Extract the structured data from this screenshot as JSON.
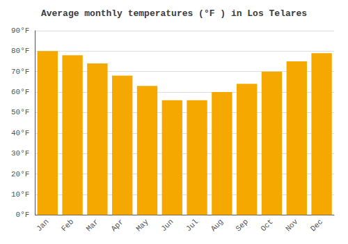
{
  "chart_data": {
    "type": "bar",
    "title": "Average monthly temperatures (°F ) in Los Telares",
    "categories": [
      "Jan",
      "Feb",
      "Mar",
      "Apr",
      "May",
      "Jun",
      "Jul",
      "Aug",
      "Sep",
      "Oct",
      "Nov",
      "Dec"
    ],
    "values": [
      80,
      78,
      74,
      68,
      63,
      56,
      56,
      60,
      64,
      70,
      75,
      79
    ],
    "color": "#F5A800",
    "ylim": [
      0,
      90
    ],
    "yticks": [
      {
        "value": 0,
        "label": "0°F"
      },
      {
        "value": 10,
        "label": "10°F"
      },
      {
        "value": 20,
        "label": "20°F"
      },
      {
        "value": 30,
        "label": "30°F"
      },
      {
        "value": 40,
        "label": "40°F"
      },
      {
        "value": 50,
        "label": "50°F"
      },
      {
        "value": 60,
        "label": "60°F"
      },
      {
        "value": 70,
        "label": "70°F"
      },
      {
        "value": 80,
        "label": "80°F"
      },
      {
        "value": 90,
        "label": "90°F"
      }
    ],
    "grid": true
  }
}
